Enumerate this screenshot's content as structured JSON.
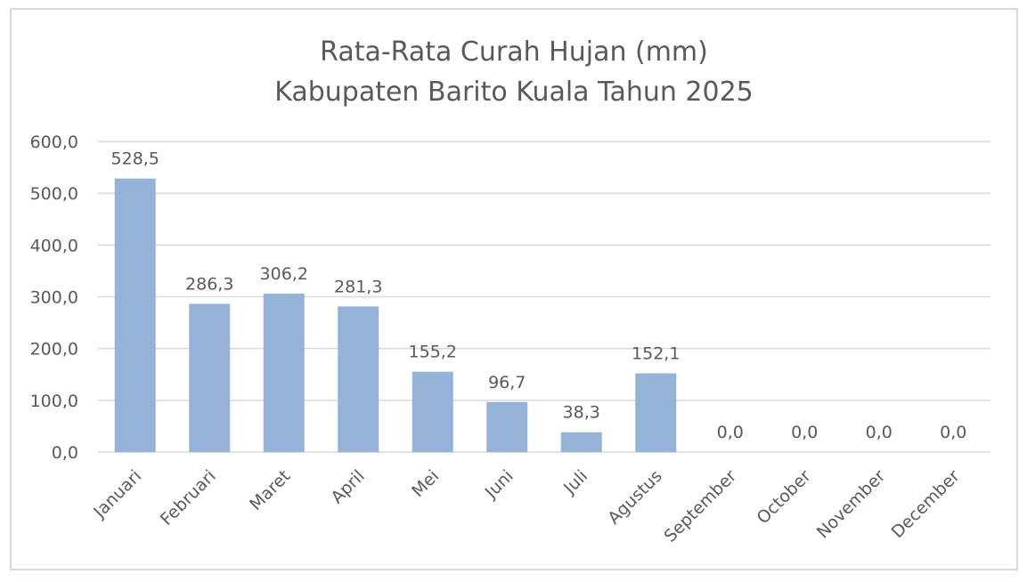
{
  "chart_data": {
    "type": "bar",
    "title": "Rata-Rata Curah Hujan (mm)",
    "subtitle": "Kabupaten Barito Kuala Tahun 2025",
    "categories": [
      "Januari",
      "Februari",
      "Maret",
      "April",
      "Mei",
      "Juni",
      "Juli",
      "Agustus",
      "September",
      "October",
      "November",
      "December"
    ],
    "values": [
      528.5,
      286.3,
      306.2,
      281.3,
      155.2,
      96.7,
      38.3,
      152.1,
      0,
      0,
      0,
      0
    ],
    "value_labels": [
      "528,5",
      "286,3",
      "306,2",
      "281,3",
      "155,2",
      "96,7",
      "38,3",
      "152,1",
      "0,0",
      "0,0",
      "0,0",
      "0,0"
    ],
    "color": "#95b3d7",
    "ylim": [
      0,
      600
    ],
    "yticks": [
      {
        "value": 0,
        "label": "0,0"
      },
      {
        "value": 100,
        "label": "100,0"
      },
      {
        "value": 200,
        "label": "200,0"
      },
      {
        "value": 300,
        "label": "300,0"
      },
      {
        "value": 400,
        "label": "400,0"
      },
      {
        "value": 500,
        "label": "500,0"
      },
      {
        "value": 600,
        "label": "600,0"
      }
    ],
    "grid": true
  }
}
